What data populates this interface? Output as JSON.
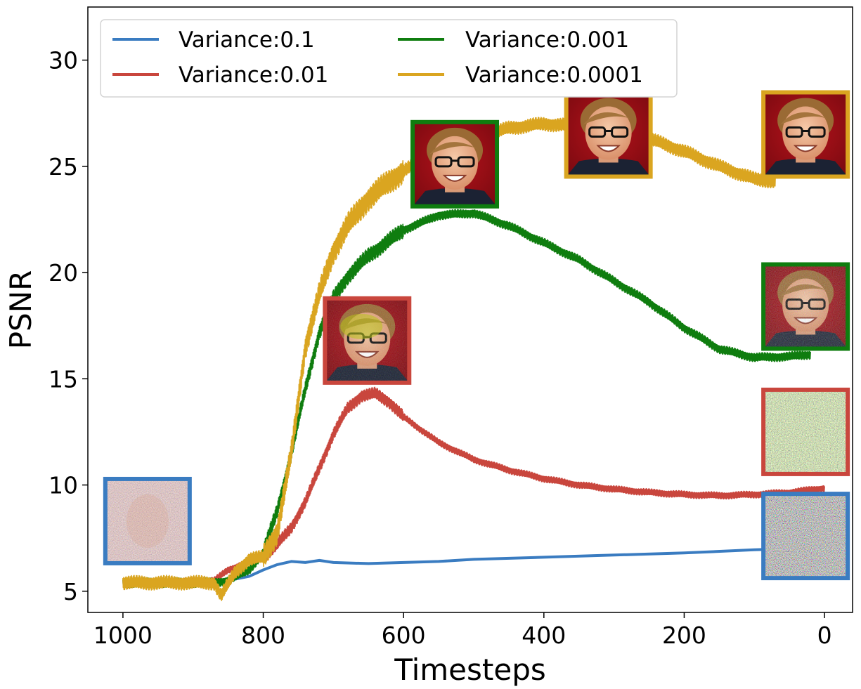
{
  "chart_data": {
    "type": "line",
    "title": "",
    "xlabel": "Timesteps",
    "ylabel": "PSNR",
    "xlim": [
      1050,
      -40
    ],
    "ylim": [
      4,
      32.5
    ],
    "x_ticks": [
      1000,
      800,
      600,
      400,
      200,
      0
    ],
    "y_ticks": [
      5,
      10,
      15,
      20,
      25,
      30
    ],
    "x_tick_labels": [
      "1000",
      "800",
      "600",
      "400",
      "200",
      "0"
    ],
    "y_tick_labels": [
      "5",
      "10",
      "15",
      "20",
      "25",
      "30"
    ],
    "legend_position": "top-left",
    "series": [
      {
        "name": "Variance:0.1",
        "color": "#3a7cc1",
        "band": 0,
        "x": [
          1000,
          950,
          900,
          870,
          850,
          820,
          800,
          780,
          760,
          740,
          720,
          700,
          650,
          600,
          550,
          500,
          400,
          300,
          200,
          100,
          0
        ],
        "y": [
          5.4,
          5.45,
          5.4,
          5.4,
          5.5,
          5.7,
          6.0,
          6.25,
          6.4,
          6.35,
          6.45,
          6.35,
          6.3,
          6.35,
          6.4,
          6.5,
          6.6,
          6.7,
          6.8,
          6.95,
          7.05
        ]
      },
      {
        "name": "Variance:0.01",
        "color": "#c9463d",
        "band": 0.35,
        "x": [
          1000,
          950,
          900,
          870,
          850,
          820,
          800,
          780,
          760,
          740,
          720,
          700,
          680,
          660,
          640,
          620,
          600,
          550,
          500,
          450,
          400,
          350,
          300,
          250,
          200,
          150,
          100,
          50,
          0
        ],
        "y": [
          5.4,
          5.4,
          5.45,
          5.5,
          6.0,
          6.4,
          6.6,
          7.2,
          8.0,
          9.2,
          10.8,
          12.4,
          13.6,
          14.2,
          14.3,
          13.9,
          13.2,
          12.0,
          11.2,
          10.7,
          10.3,
          10.0,
          9.8,
          9.65,
          9.55,
          9.5,
          9.55,
          9.65,
          9.85
        ]
      },
      {
        "name": "Variance:0.001",
        "color": "#0f7d0f",
        "band": 0.45,
        "x": [
          1000,
          950,
          900,
          870,
          850,
          820,
          800,
          780,
          760,
          740,
          720,
          700,
          680,
          650,
          600,
          550,
          500,
          450,
          400,
          350,
          300,
          250,
          200,
          150,
          100,
          50,
          20
        ],
        "y": [
          5.4,
          5.4,
          5.4,
          5.4,
          5.5,
          6.0,
          6.8,
          8.8,
          11.5,
          14.5,
          17.2,
          18.8,
          19.8,
          20.8,
          22.0,
          22.7,
          22.8,
          22.2,
          21.4,
          20.6,
          19.6,
          18.6,
          17.4,
          16.4,
          16.0,
          16.05,
          16.15
        ]
      },
      {
        "name": "Variance:0.0001",
        "color": "#daa520",
        "band": 0.7,
        "x": [
          1000,
          950,
          900,
          870,
          860,
          840,
          820,
          800,
          780,
          760,
          740,
          720,
          700,
          680,
          650,
          600,
          550,
          500,
          450,
          400,
          350,
          300,
          250,
          200,
          150,
          100,
          70
        ],
        "y": [
          5.4,
          5.4,
          5.4,
          5.4,
          4.8,
          5.9,
          6.5,
          6.6,
          7.8,
          11.5,
          16.5,
          19.0,
          21.0,
          22.2,
          23.5,
          24.8,
          25.7,
          26.3,
          26.8,
          27.0,
          26.9,
          26.6,
          26.3,
          25.7,
          25.0,
          24.4,
          24.3
        ]
      }
    ],
    "thumbnails": [
      {
        "label": "variance-0.1-start-sample",
        "color": "#3a7cc1",
        "x": 965,
        "y": 8.3,
        "style": "noise-dim"
      },
      {
        "label": "variance-0.01-peak-sample",
        "color": "#c9463d",
        "x": 652,
        "y": 16.8,
        "style": "face-colored-noise"
      },
      {
        "label": "variance-0.001-peak-sample",
        "color": "#0f7d0f",
        "x": 527,
        "y": 25.1,
        "style": "face-clean"
      },
      {
        "label": "variance-0.0001-peak-sample",
        "color": "#daa520",
        "x": 308,
        "y": 26.5,
        "style": "face-clean"
      },
      {
        "label": "variance-0.0001-final-sample",
        "color": "#daa520",
        "x": 27,
        "y": 26.5,
        "style": "face-clean"
      },
      {
        "label": "variance-0.001-final-sample",
        "color": "#0f7d0f",
        "x": 27,
        "y": 18.4,
        "style": "face-noisy"
      },
      {
        "label": "variance-0.01-final-sample",
        "color": "#c9463d",
        "x": 27,
        "y": 12.5,
        "style": "noise-green"
      },
      {
        "label": "variance-0.1-final-sample",
        "color": "#3a7cc1",
        "x": 27,
        "y": 7.6,
        "style": "noise-bright"
      }
    ]
  }
}
